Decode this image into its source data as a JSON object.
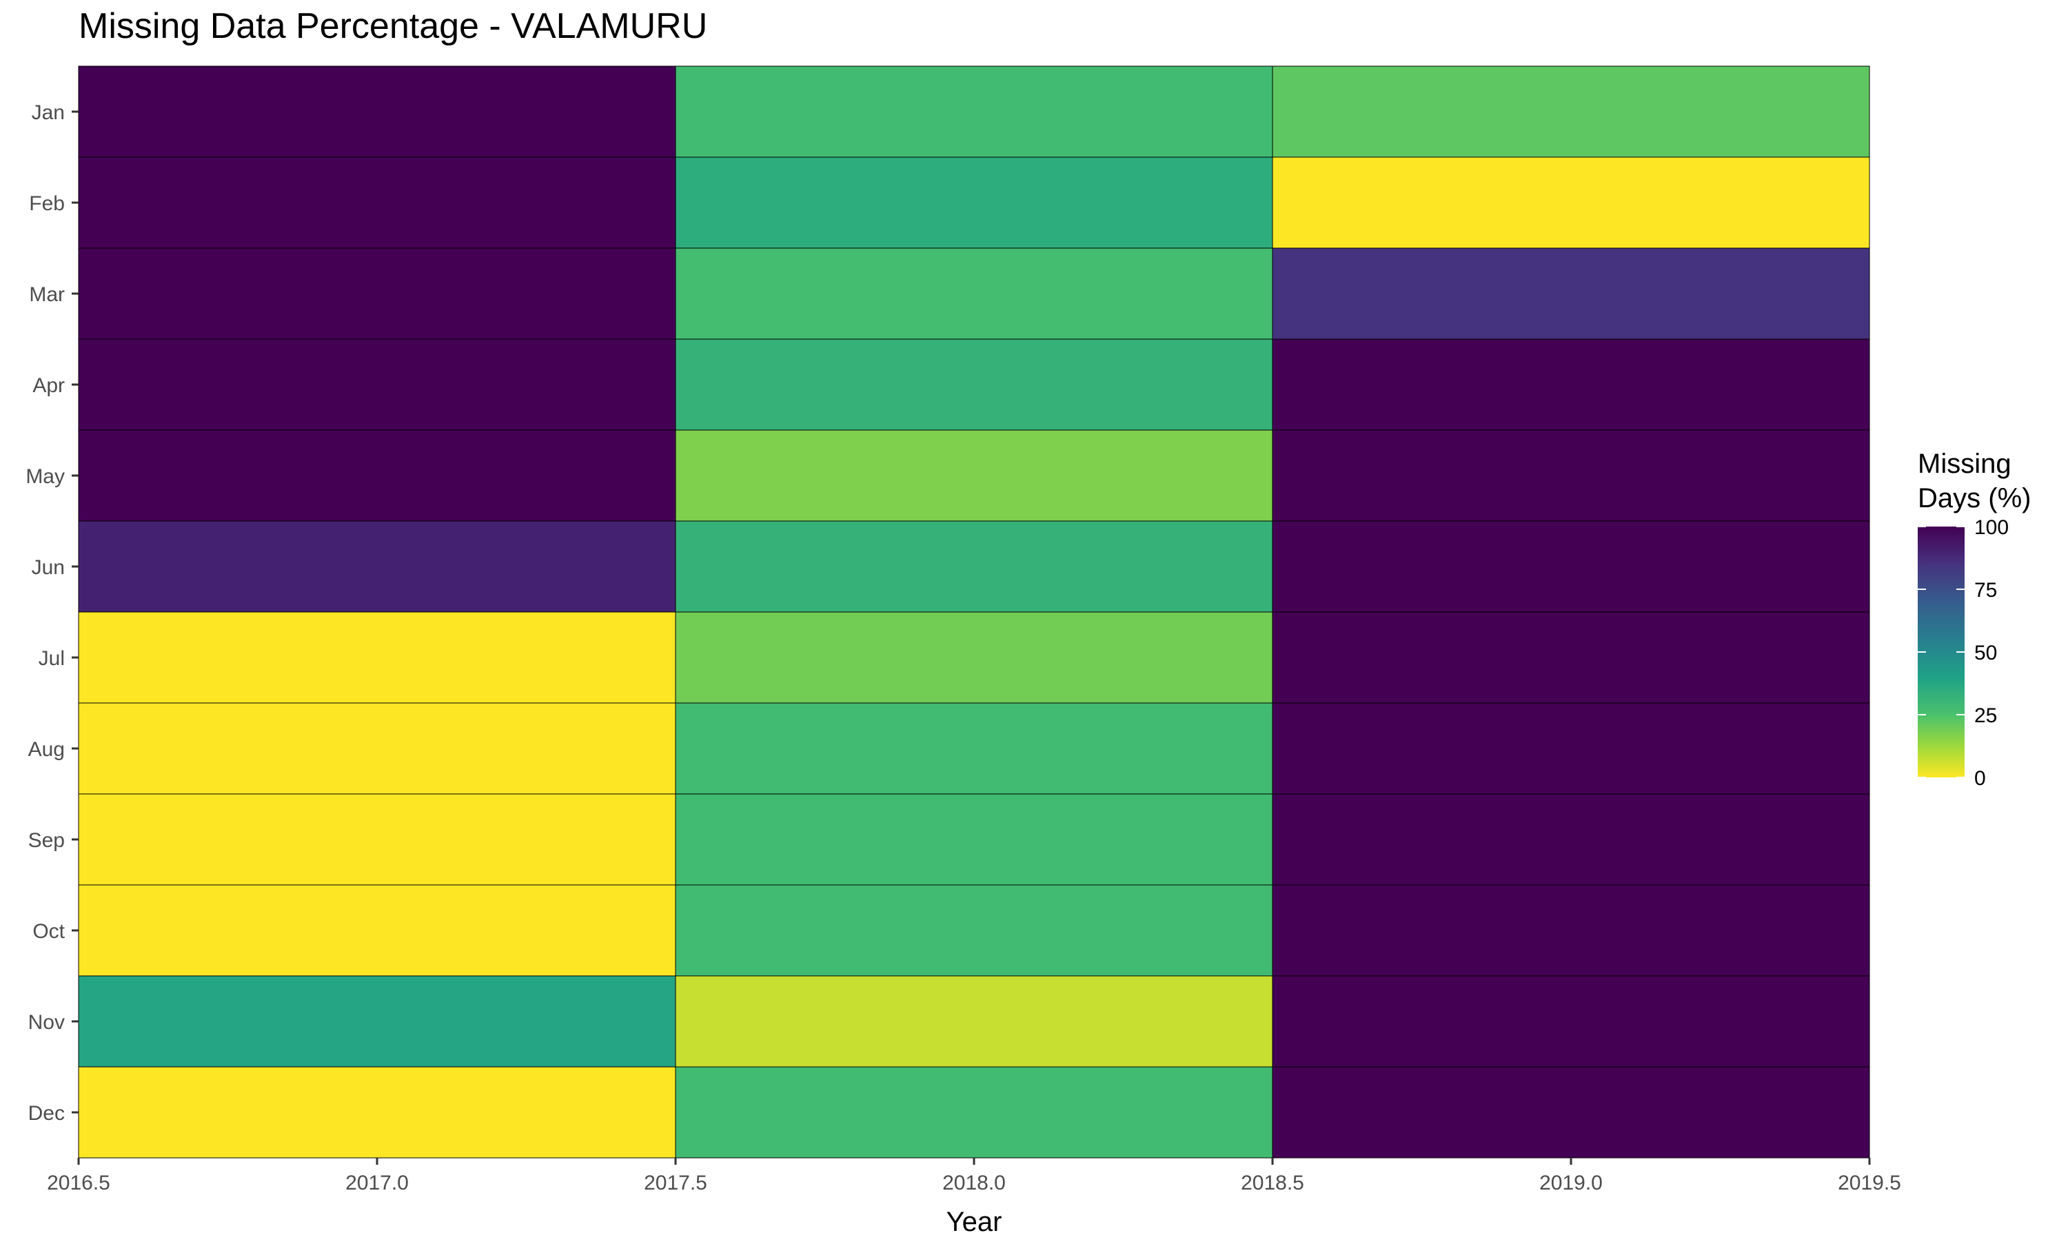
{
  "chart_data": {
    "type": "heatmap",
    "title": "Missing Data Percentage - VALAMURU",
    "xlabel": "Year",
    "ylabel": "",
    "xlim": [
      2016.5,
      2019.5
    ],
    "x_ticks": [
      "2016.5",
      "2017.0",
      "2017.5",
      "2018.0",
      "2018.5",
      "2019.0",
      "2019.5"
    ],
    "x_tick_values": [
      2016.5,
      2017.0,
      2017.5,
      2018.0,
      2018.5,
      2019.0,
      2019.5
    ],
    "years": [
      2017,
      2018,
      2019
    ],
    "months": [
      "Jan",
      "Feb",
      "Mar",
      "Apr",
      "May",
      "Jun",
      "Jul",
      "Aug",
      "Sep",
      "Oct",
      "Nov",
      "Dec"
    ],
    "values": [
      [
        100,
        28,
        22
      ],
      [
        100,
        35,
        0
      ],
      [
        100,
        27,
        85
      ],
      [
        100,
        32,
        100
      ],
      [
        100,
        17,
        100
      ],
      [
        90,
        32,
        100
      ],
      [
        0,
        19,
        100
      ],
      [
        0,
        28,
        100
      ],
      [
        0,
        28,
        100
      ],
      [
        0,
        28,
        100
      ],
      [
        38,
        7,
        100
      ],
      [
        0,
        28,
        100
      ]
    ],
    "legend": {
      "title_line1": "Missing",
      "title_line2": "Days (%)",
      "ticks": [
        "100",
        "75",
        "50",
        "25",
        "0"
      ],
      "tick_values": [
        100,
        75,
        50,
        25,
        0
      ],
      "range": [
        0,
        100
      ],
      "colormap": "viridis (reversed: 0 = yellow, 100 = dark purple)",
      "position": "right"
    },
    "grid": false
  }
}
